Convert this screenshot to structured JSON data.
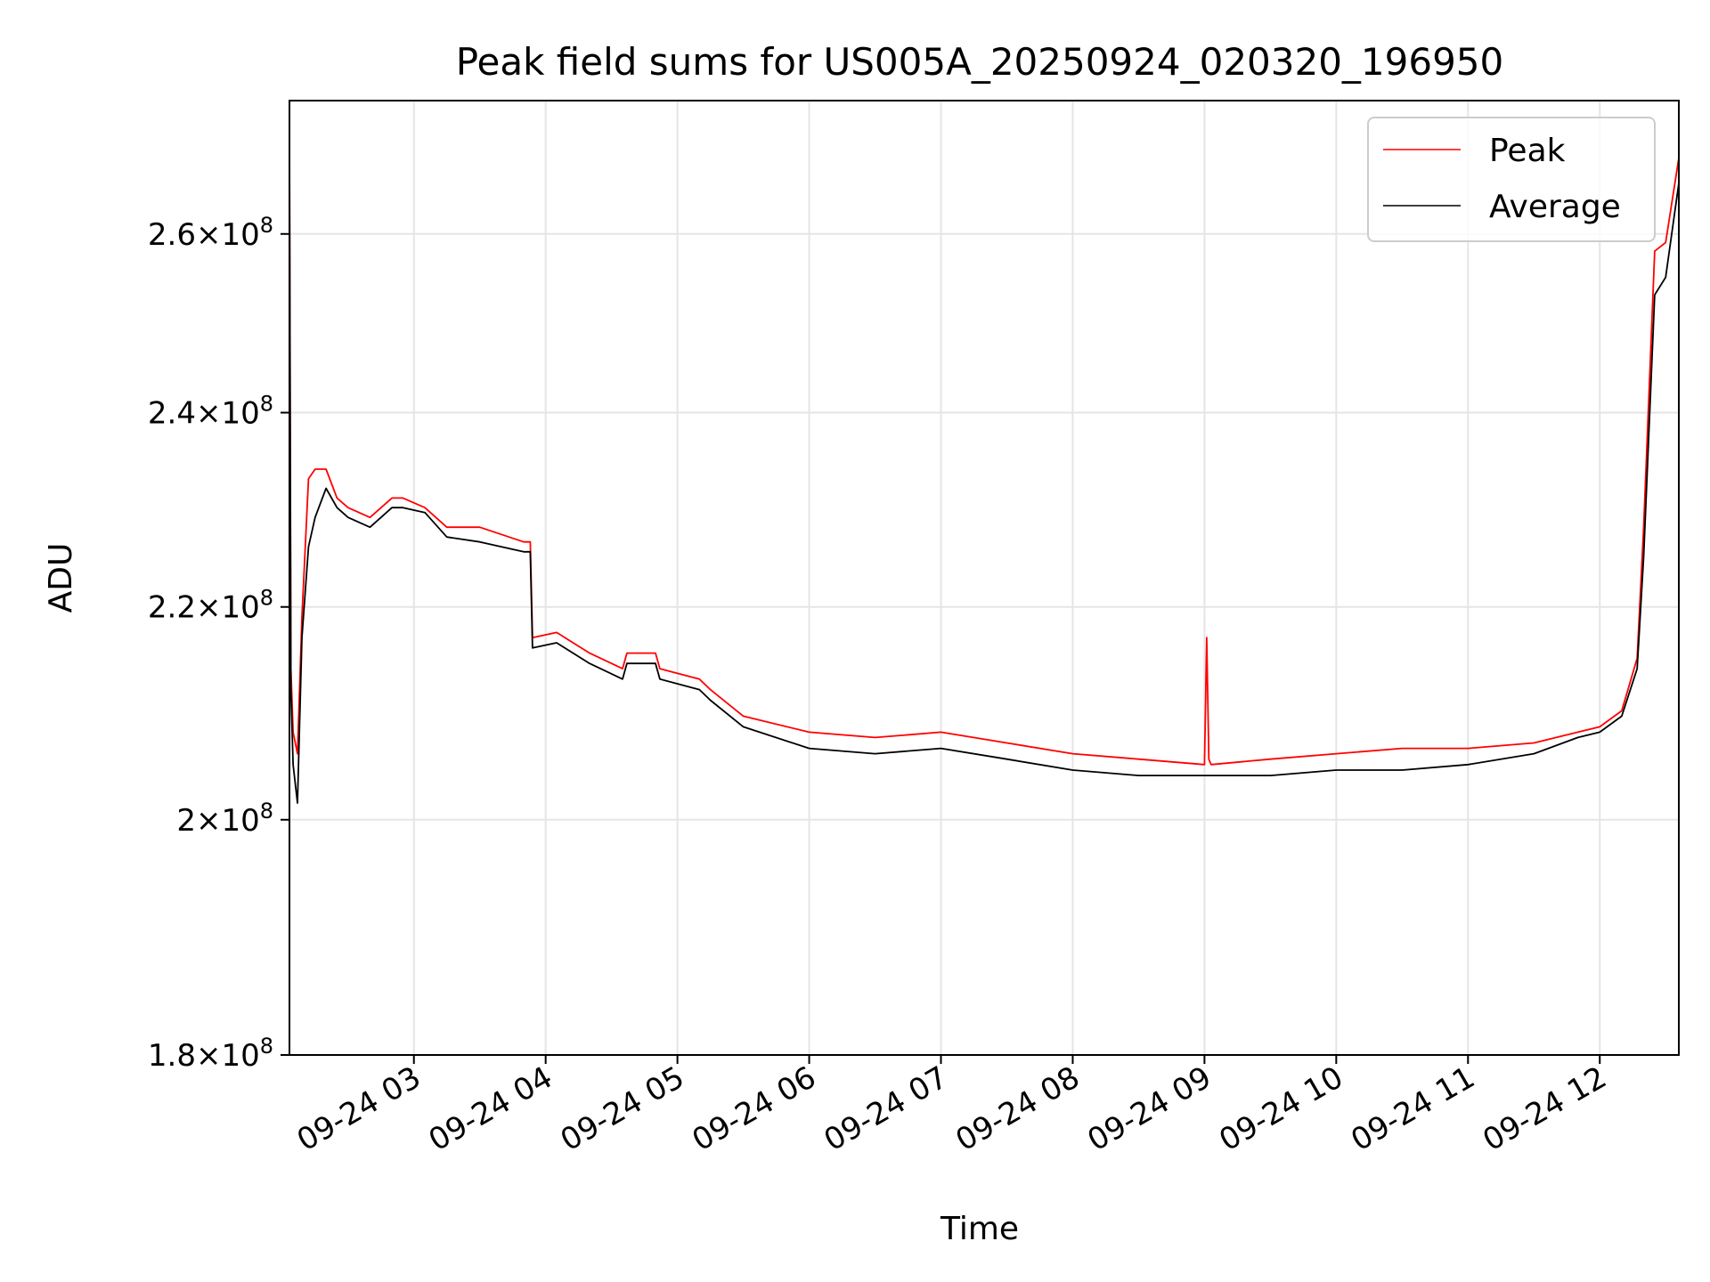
{
  "chart_data": {
    "type": "line",
    "title": "Peak field sums for US005A_20250924_020320_196950",
    "xlabel": "Time",
    "ylabel": "ADU",
    "y_scale": "log",
    "xlim": [
      "2025-09-24T02:03:20",
      "2025-09-24T12:36:00"
    ],
    "ylim": [
      180000000.0,
      276000000.0
    ],
    "grid": true,
    "legend_position": "top-right",
    "x_ticks": [
      {
        "t": "2025-09-24T03:00",
        "label": "09-24 03"
      },
      {
        "t": "2025-09-24T04:00",
        "label": "09-24 04"
      },
      {
        "t": "2025-09-24T05:00",
        "label": "09-24 05"
      },
      {
        "t": "2025-09-24T06:00",
        "label": "09-24 06"
      },
      {
        "t": "2025-09-24T07:00",
        "label": "09-24 07"
      },
      {
        "t": "2025-09-24T08:00",
        "label": "09-24 08"
      },
      {
        "t": "2025-09-24T09:00",
        "label": "09-24 09"
      },
      {
        "t": "2025-09-24T10:00",
        "label": "09-24 10"
      },
      {
        "t": "2025-09-24T11:00",
        "label": "09-24 11"
      },
      {
        "t": "2025-09-24T12:00",
        "label": "09-24 12"
      }
    ],
    "y_ticks": [
      {
        "value": 180000000.0,
        "mantissa": "1.8",
        "base": "10",
        "exp": "8"
      },
      {
        "value": 200000000.0,
        "mantissa": "2",
        "base": "10",
        "exp": "8"
      },
      {
        "value": 220000000.0,
        "mantissa": "2.2",
        "base": "10",
        "exp": "8"
      },
      {
        "value": 240000000.0,
        "mantissa": "2.4",
        "base": "10",
        "exp": "8"
      },
      {
        "value": 260000000.0,
        "mantissa": "2.6",
        "base": "10",
        "exp": "8"
      }
    ],
    "series": [
      {
        "name": "Peak",
        "color": "#ff0000",
        "x": [
          "2025-09-24T02:03:20",
          "2025-09-24T02:04:00",
          "2025-09-24T02:05:00",
          "2025-09-24T02:07:00",
          "2025-09-24T02:09:00",
          "2025-09-24T02:12:00",
          "2025-09-24T02:15:00",
          "2025-09-24T02:20:00",
          "2025-09-24T02:25:00",
          "2025-09-24T02:30:00",
          "2025-09-24T02:40:00",
          "2025-09-24T02:50:00",
          "2025-09-24T02:55:00",
          "2025-09-24T03:05:00",
          "2025-09-24T03:15:00",
          "2025-09-24T03:30:00",
          "2025-09-24T03:50:00",
          "2025-09-24T03:53:00",
          "2025-09-24T03:54:00",
          "2025-09-24T04:05:00",
          "2025-09-24T04:20:00",
          "2025-09-24T04:35:00",
          "2025-09-24T04:37:00",
          "2025-09-24T04:50:00",
          "2025-09-24T04:52:00",
          "2025-09-24T05:10:00",
          "2025-09-24T05:15:00",
          "2025-09-24T05:30:00",
          "2025-09-24T06:00:00",
          "2025-09-24T06:30:00",
          "2025-09-24T07:00:00",
          "2025-09-24T07:30:00",
          "2025-09-24T08:00:00",
          "2025-09-24T08:30:00",
          "2025-09-24T09:00:00",
          "2025-09-24T09:01:00",
          "2025-09-24T09:02:00",
          "2025-09-24T09:03:00",
          "2025-09-24T09:30:00",
          "2025-09-24T10:00:00",
          "2025-09-24T10:30:00",
          "2025-09-24T11:00:00",
          "2025-09-24T11:30:00",
          "2025-09-24T11:50:00",
          "2025-09-24T12:00:00",
          "2025-09-24T12:10:00",
          "2025-09-24T12:17:00",
          "2025-09-24T12:20:00",
          "2025-09-24T12:25:00",
          "2025-09-24T12:30:00",
          "2025-09-24T12:36:00"
        ],
        "values": [
          273000000.0,
          214000000.0,
          208000000.0,
          206000000.0,
          219000000.0,
          233000000.0,
          234000000.0,
          234000000.0,
          231000000.0,
          230000000.0,
          229000000.0,
          231000000.0,
          231000000.0,
          230000000.0,
          228000000.0,
          228000000.0,
          226500000.0,
          226500000.0,
          217000000.0,
          217500000.0,
          215500000.0,
          214000000.0,
          215500000.0,
          215500000.0,
          214000000.0,
          213000000.0,
          212000000.0,
          209500000.0,
          208000000.0,
          207500000.0,
          208000000.0,
          207000000.0,
          206000000.0,
          205500000.0,
          205000000.0,
          217000000.0,
          205500000.0,
          205000000.0,
          205500000.0,
          206000000.0,
          206500000.0,
          206500000.0,
          207000000.0,
          208000000.0,
          208500000.0,
          210000000.0,
          215000000.0,
          228000000.0,
          258000000.0,
          259000000.0,
          269000000.0
        ]
      },
      {
        "name": "Average",
        "color": "#000000",
        "x": [
          "2025-09-24T02:03:20",
          "2025-09-24T02:04:00",
          "2025-09-24T02:05:00",
          "2025-09-24T02:07:00",
          "2025-09-24T02:09:00",
          "2025-09-24T02:12:00",
          "2025-09-24T02:15:00",
          "2025-09-24T02:20:00",
          "2025-09-24T02:25:00",
          "2025-09-24T02:30:00",
          "2025-09-24T02:40:00",
          "2025-09-24T02:50:00",
          "2025-09-24T02:55:00",
          "2025-09-24T03:05:00",
          "2025-09-24T03:15:00",
          "2025-09-24T03:30:00",
          "2025-09-24T03:50:00",
          "2025-09-24T03:53:00",
          "2025-09-24T03:54:00",
          "2025-09-24T04:05:00",
          "2025-09-24T04:20:00",
          "2025-09-24T04:35:00",
          "2025-09-24T04:37:00",
          "2025-09-24T04:50:00",
          "2025-09-24T04:52:00",
          "2025-09-24T05:10:00",
          "2025-09-24T05:15:00",
          "2025-09-24T05:30:00",
          "2025-09-24T06:00:00",
          "2025-09-24T06:30:00",
          "2025-09-24T07:00:00",
          "2025-09-24T07:30:00",
          "2025-09-24T08:00:00",
          "2025-09-24T08:30:00",
          "2025-09-24T09:00:00",
          "2025-09-24T09:30:00",
          "2025-09-24T10:00:00",
          "2025-09-24T10:30:00",
          "2025-09-24T11:00:00",
          "2025-09-24T11:30:00",
          "2025-09-24T11:50:00",
          "2025-09-24T12:00:00",
          "2025-09-24T12:10:00",
          "2025-09-24T12:17:00",
          "2025-09-24T12:20:00",
          "2025-09-24T12:25:00",
          "2025-09-24T12:30:00",
          "2025-09-24T12:36:00"
        ],
        "values": [
          270000000.0,
          212000000.0,
          205000000.0,
          201500000.0,
          217000000.0,
          226000000.0,
          229000000.0,
          232000000.0,
          230000000.0,
          229000000.0,
          228000000.0,
          230000000.0,
          230000000.0,
          229500000.0,
          227000000.0,
          226500000.0,
          225500000.0,
          225500000.0,
          216000000.0,
          216500000.0,
          214500000.0,
          213000000.0,
          214500000.0,
          214500000.0,
          213000000.0,
          212000000.0,
          211000000.0,
          208500000.0,
          206500000.0,
          206000000.0,
          206500000.0,
          205500000.0,
          204500000.0,
          204000000.0,
          204000000.0,
          204000000.0,
          204500000.0,
          204500000.0,
          205000000.0,
          206000000.0,
          207500000.0,
          208000000.0,
          209500000.0,
          214000000.0,
          225000000.0,
          253000000.0,
          255000000.0,
          266000000.0
        ]
      }
    ]
  }
}
